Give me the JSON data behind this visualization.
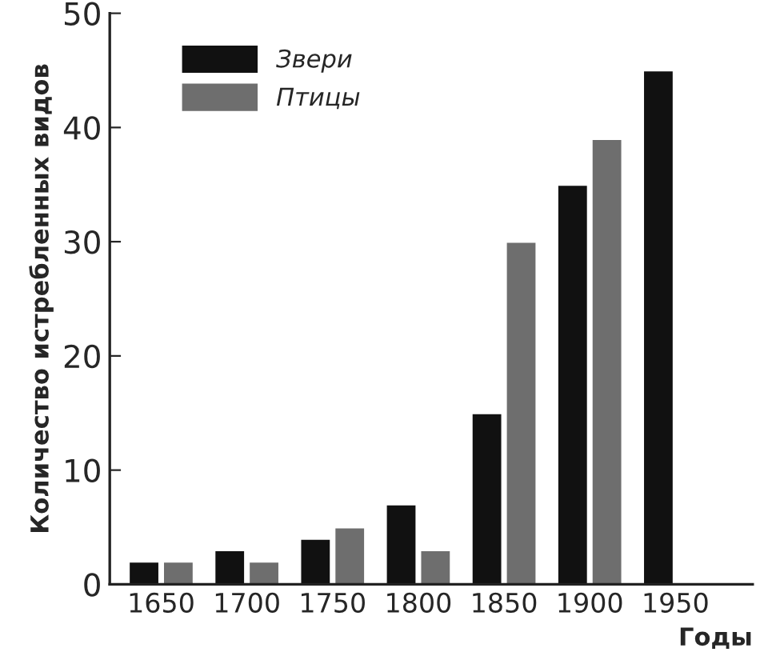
{
  "chart_data": {
    "type": "bar",
    "xlabel": "Годы",
    "ylabel": "Количество истребленных видов",
    "categories": [
      "1650",
      "1700",
      "1750",
      "1800",
      "1850",
      "1900",
      "1950"
    ],
    "series": [
      {
        "name": "Звери",
        "color": "#111111",
        "values": [
          2,
          3,
          4,
          7,
          15,
          35,
          45
        ]
      },
      {
        "name": "Птицы",
        "color": "#6e6e6e",
        "values": [
          2,
          2,
          5,
          3,
          30,
          39,
          null
        ]
      }
    ],
    "ylim": [
      0,
      50
    ],
    "yticks": [
      0,
      10,
      20,
      30,
      40,
      50
    ],
    "grid": false,
    "legend": "top left"
  }
}
